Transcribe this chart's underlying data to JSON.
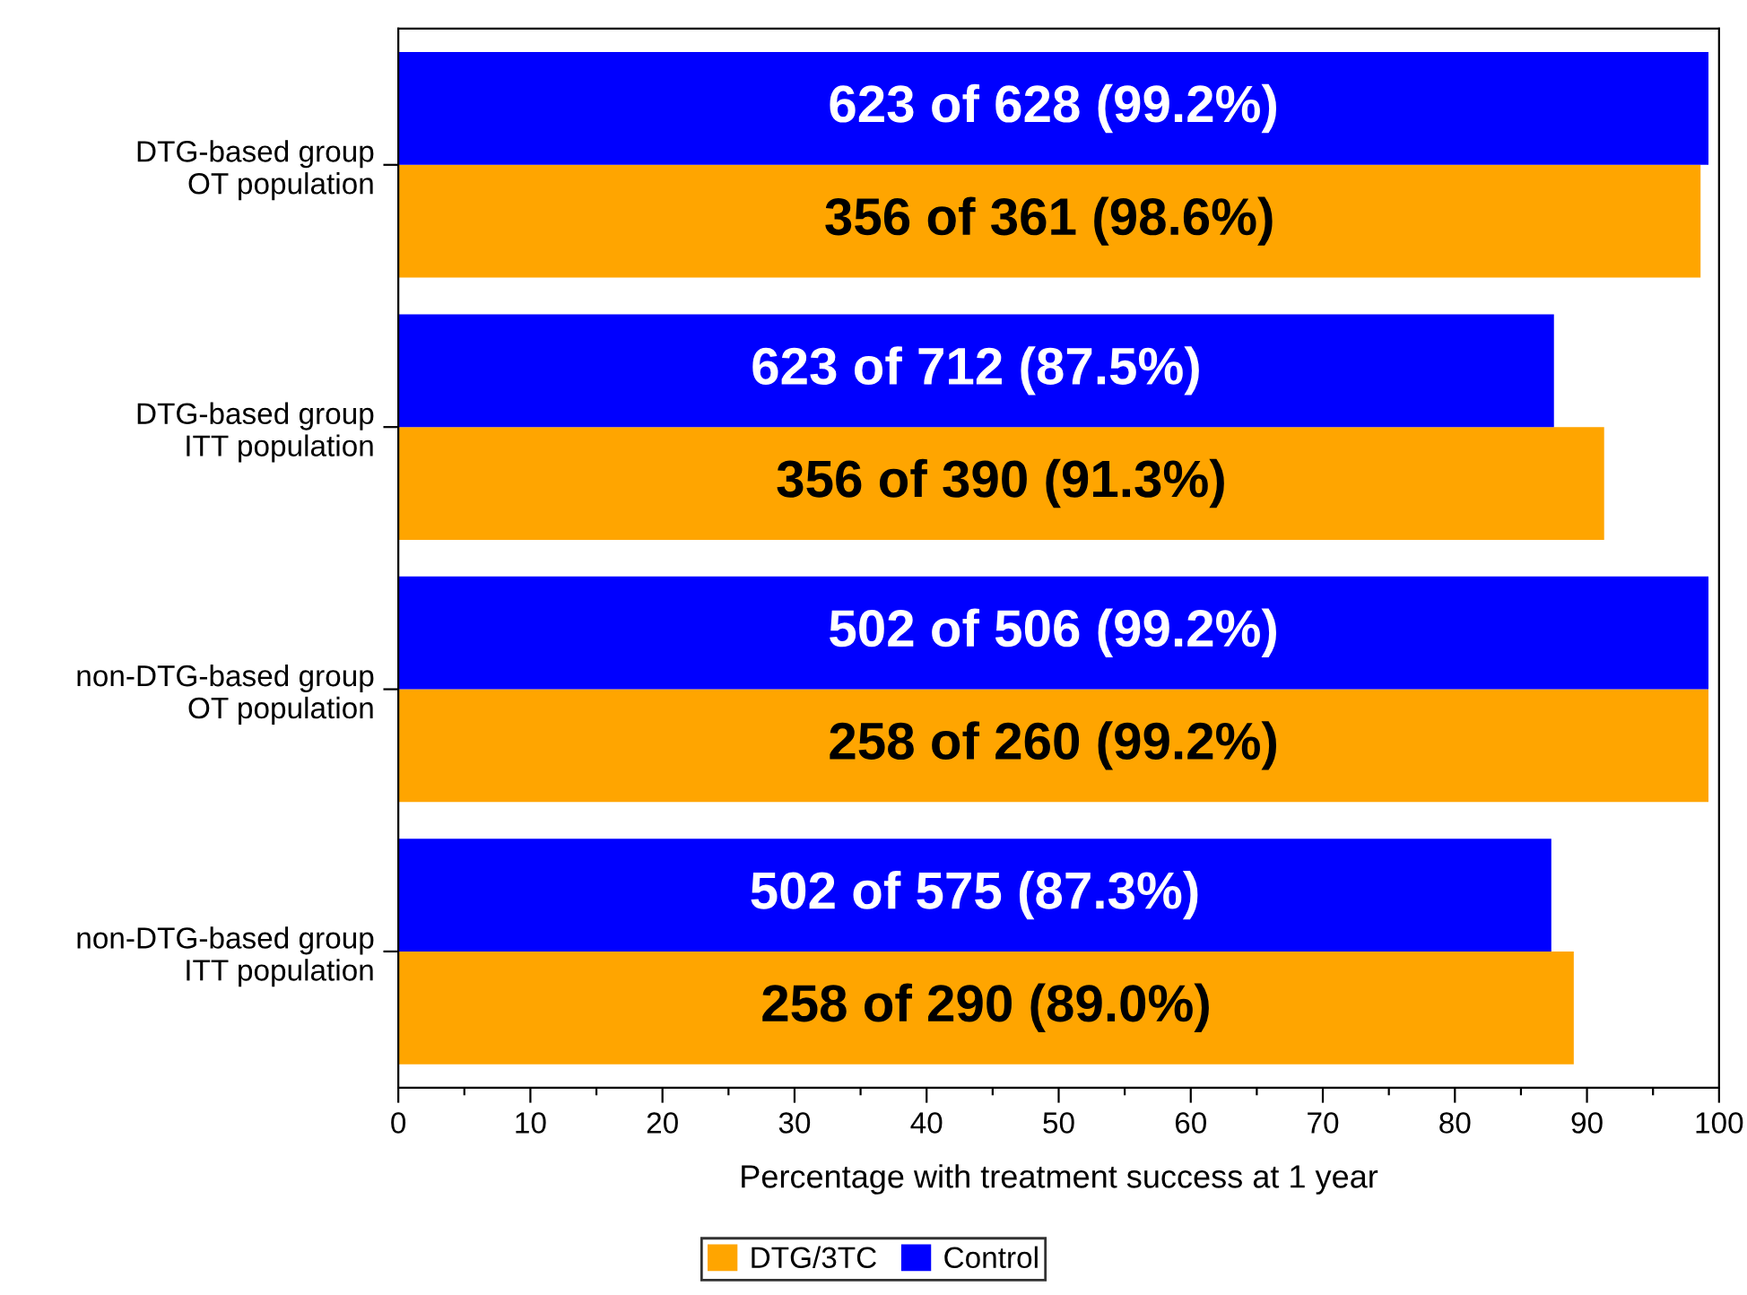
{
  "chart_data": {
    "type": "bar",
    "orientation": "horizontal",
    "xlabel": "Percentage with treatment success at 1 year",
    "categories": [
      "DTG-based group\nOT population",
      "DTG-based group\nITT population",
      "non-DTG-based group\nOT population",
      "non-DTG-based group\nITT population"
    ],
    "series": [
      {
        "name": "DTG/3TC",
        "color": "#ffa500",
        "values": [
          98.6,
          91.3,
          99.2,
          89.0
        ],
        "value_labels": [
          "356 of 361 (98.6%)",
          "356 of 390 (91.3%)",
          "258 of 260 (99.2%)",
          "258 of 290 (89.0%)"
        ]
      },
      {
        "name": "Control",
        "color": "#0000ff",
        "values": [
          99.2,
          87.5,
          99.2,
          87.3
        ],
        "value_labels": [
          "623 of 628 (99.2%)",
          "623 of 712 (87.5%)",
          "502 of 506 (99.2%)",
          "502 of 575 (87.3%)"
        ]
      }
    ],
    "xlim": [
      0,
      100
    ],
    "xticks": [
      0,
      {
        "value": 5,
        "label": null
      },
      10,
      {
        "value": 15,
        "label": null
      },
      20,
      {
        "value": 25,
        "label": null
      },
      30,
      {
        "value": 35,
        "label": null
      },
      40,
      {
        "value": 45,
        "label": null
      },
      50,
      {
        "value": 55,
        "label": null
      },
      60,
      {
        "value": 65,
        "label": null
      },
      70,
      {
        "value": 75,
        "label": null
      },
      80,
      {
        "value": 85,
        "label": null
      },
      90,
      {
        "value": 95,
        "label": null
      },
      100
    ],
    "grid": false,
    "legend": "bottom"
  }
}
